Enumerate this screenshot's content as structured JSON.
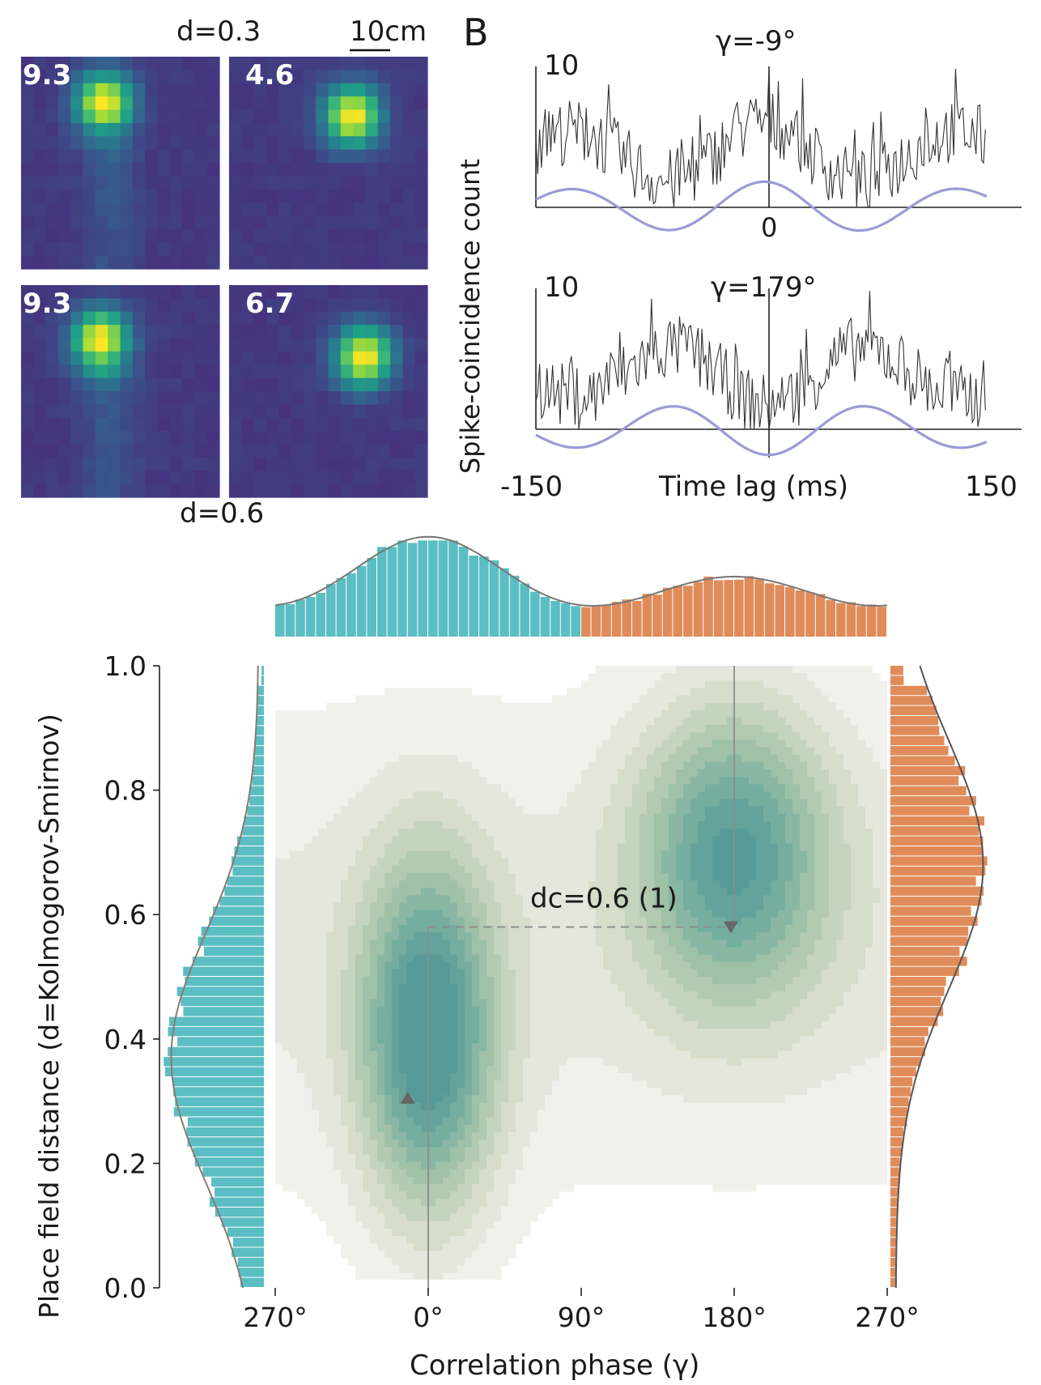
{
  "panel_a": {
    "top_label": "d=0.3",
    "bottom_label": "d=0.6",
    "scale_bar_label": "10cm",
    "maps": [
      {
        "peak_rate": "9.3",
        "peak": [
          0.42,
          0.22
        ]
      },
      {
        "peak_rate": "4.6",
        "peak": [
          0.62,
          0.28
        ]
      },
      {
        "peak_rate": "9.3",
        "peak": [
          0.4,
          0.26
        ]
      },
      {
        "peak_rate": "6.7",
        "peak": [
          0.68,
          0.34
        ]
      }
    ],
    "colormap": [
      "#46327e",
      "#365c8d",
      "#277f8e",
      "#1fa187",
      "#4ac16d",
      "#a0da39",
      "#fde725"
    ]
  },
  "panel_b": {
    "panel_letter": "B",
    "ylabel": "Spike-coincidence count",
    "xlabel": "Time lag (ms)",
    "xmin_label": "-150",
    "xmax_label": "150",
    "zero_label": "0",
    "traces": [
      {
        "ymax_label": "10",
        "gamma_label": "γ=-9°",
        "phase_deg": -9
      },
      {
        "ymax_label": "10",
        "gamma_label": "γ=179°",
        "phase_deg": 179
      }
    ],
    "trace_color": "#333333",
    "fit_color": "#9b9bd6"
  },
  "chart_data": {
    "type": "heatmap",
    "xlabel": "Correlation phase (γ)",
    "ylabel": "Place field distance (d=Kolmogorov-Smirnov)",
    "xticks": [
      "270°",
      "0°",
      "90°",
      "180°",
      "270°"
    ],
    "xlim": [
      -90,
      270
    ],
    "yticks": [
      "0.0",
      "0.2",
      "0.4",
      "0.6",
      "0.8",
      "1.0"
    ],
    "ylim": [
      0,
      1
    ],
    "annotation": "dc=0.6 (1)",
    "critical_distance": 0.58,
    "modes": [
      {
        "phase": 0,
        "distance": 0.4
      },
      {
        "phase": 180,
        "distance": 0.7
      }
    ],
    "markers": [
      {
        "phase": -12,
        "distance": 0.3,
        "shape": "triangle-up"
      },
      {
        "phase": 178,
        "distance": 0.58,
        "shape": "triangle-down"
      }
    ],
    "top_histogram": {
      "bins": 60,
      "range": [
        -90,
        270
      ],
      "split_phase": 90,
      "colors": [
        "#5bbec3",
        "#e08c5a"
      ],
      "fit_peaks": [
        {
          "phase": 0,
          "height": 1.0
        },
        {
          "phase": 180,
          "height": 0.66
        }
      ]
    },
    "left_histogram": {
      "color": "#5bbec3",
      "mode_distance": 0.37
    },
    "right_histogram": {
      "color": "#e08c5a",
      "mode_distance": 0.68
    },
    "contour_colors": [
      "#f1f1ec",
      "#e5e7dc",
      "#d6ddcb",
      "#c5d4bc",
      "#b2cab0",
      "#9ec1a8",
      "#89b7a4",
      "#75ad9f",
      "#63a39c",
      "#579b99"
    ]
  }
}
